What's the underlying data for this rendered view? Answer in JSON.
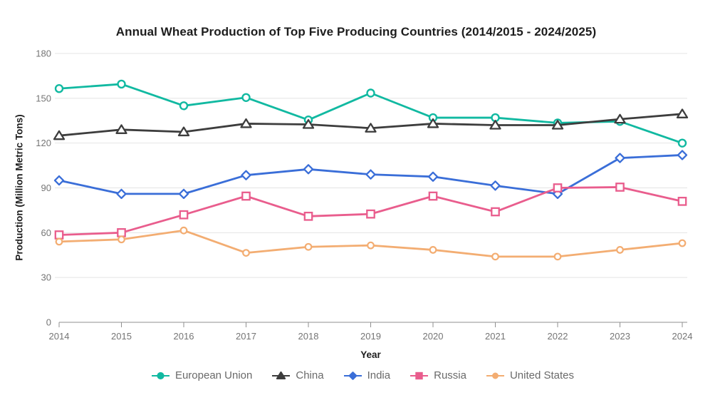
{
  "chart_data": {
    "type": "line",
    "title": "Annual Wheat Production of Top Five Producing Countries (2014/2015 - 2024/2025)",
    "xlabel": "Year",
    "ylabel": "Production (Million Metric Tons)",
    "x": [
      2014,
      2015,
      2016,
      2017,
      2018,
      2019,
      2020,
      2021,
      2022,
      2023,
      2024
    ],
    "ylim": [
      0,
      180
    ],
    "y_ticks": [
      0,
      30,
      60,
      90,
      120,
      150,
      180
    ],
    "grid": true,
    "legend_position": "bottom",
    "series": [
      {
        "name": "European Union",
        "color": "#11B9A1",
        "marker": "circle",
        "values": [
          156.5,
          159.5,
          145,
          150.5,
          135.5,
          153.5,
          137,
          137,
          133.5,
          134.5,
          120
        ]
      },
      {
        "name": "China",
        "color": "#3D3D3D",
        "marker": "triangle",
        "values": [
          125,
          129,
          127.5,
          133,
          132.5,
          130,
          133,
          132,
          132,
          136,
          139.5
        ]
      },
      {
        "name": "India",
        "color": "#3A6ED8",
        "marker": "diamond",
        "values": [
          95,
          86,
          86,
          98.5,
          102.5,
          99,
          97.5,
          91.5,
          86,
          110,
          112
        ]
      },
      {
        "name": "Russia",
        "color": "#E95D8D",
        "marker": "square",
        "values": [
          58.5,
          60,
          72,
          84.5,
          71,
          72.5,
          84.5,
          74,
          90,
          90.5,
          81
        ]
      },
      {
        "name": "United States",
        "color": "#F3AD72",
        "marker": "circle-small",
        "values": [
          54,
          55.5,
          61.5,
          46.5,
          50.5,
          51.5,
          48.5,
          44,
          44,
          48.5,
          53
        ]
      }
    ]
  },
  "colors": {
    "grid_line": "#E4E4E4",
    "axis_line": "#8F8F8F",
    "tick_text": "#757575",
    "title_text": "#1D1D1D",
    "legend_text": "#6A6A6A",
    "background": "#FFFFFF"
  }
}
